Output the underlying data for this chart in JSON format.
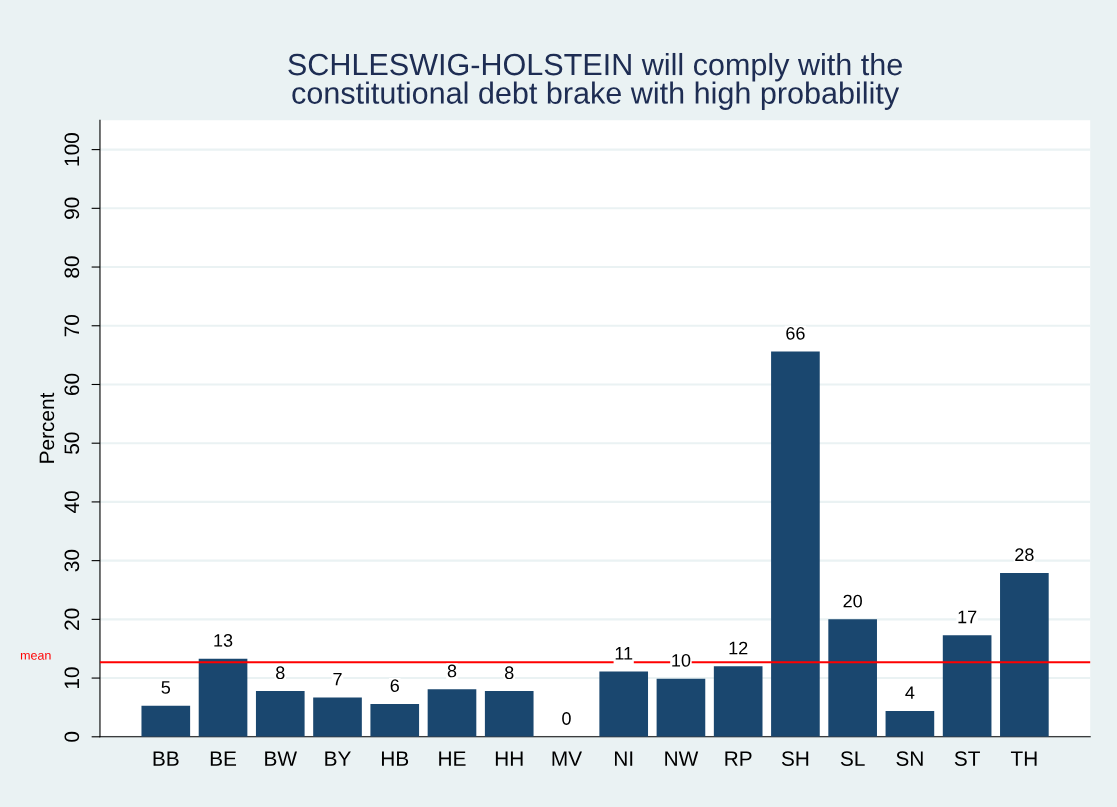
{
  "chart_data": {
    "type": "bar",
    "title": "SCHLESWIG-HOLSTEIN will comply with the\nconstitutional debt brake with high probability",
    "ylabel": "Percent",
    "categories": [
      "BB",
      "BE",
      "BW",
      "BY",
      "HB",
      "HE",
      "HH",
      "MV",
      "NI",
      "NW",
      "RP",
      "SH",
      "SL",
      "SN",
      "ST",
      "TH"
    ],
    "series": [
      {
        "color": "#1a476f",
        "values": [
          5.3,
          13.3,
          7.8,
          6.7,
          5.6,
          8.1,
          7.8,
          0,
          11.1,
          9.9,
          12.0,
          65.6,
          20.0,
          4.4,
          17.3,
          27.9
        ],
        "value_labels": [
          "5",
          "13",
          "8",
          "7",
          "6",
          "8",
          "8",
          "0",
          "11",
          "10",
          "12",
          "66",
          "20",
          "4",
          "17",
          "28"
        ]
      }
    ],
    "ylim": [
      0,
      105
    ],
    "yticks": [
      0,
      10,
      20,
      30,
      40,
      50,
      60,
      70,
      80,
      90,
      100
    ],
    "grid": "y",
    "ref_lines": [
      {
        "axis": "y",
        "value": 12.7,
        "label": "mean",
        "color": "#ff0000"
      }
    ]
  }
}
